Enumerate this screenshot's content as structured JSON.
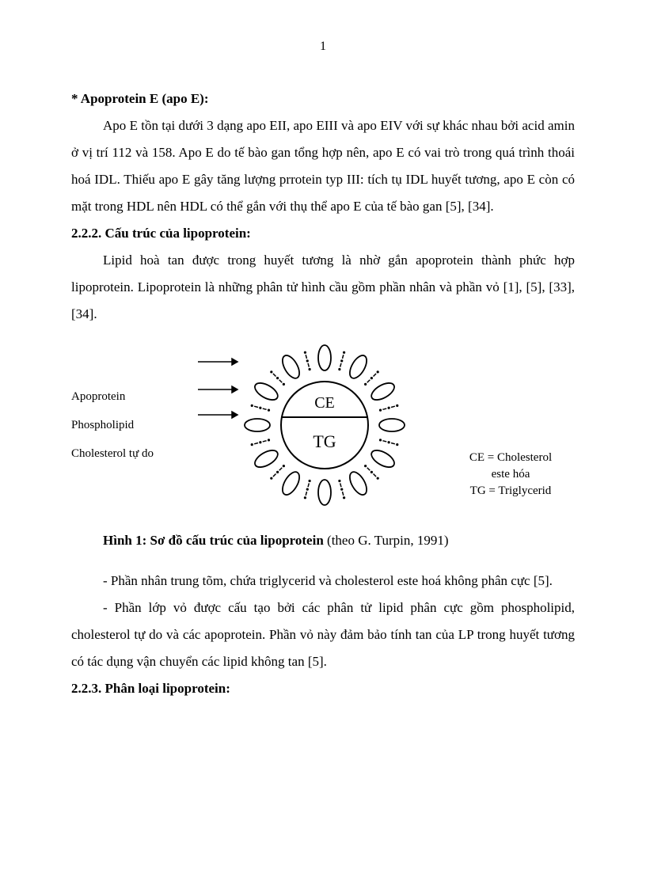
{
  "page_number": "1",
  "heading1": "* Apoprotein E (apo E):",
  "para1": "Apo E tồn tại dưới 3 dạng apo EII, apo EIII và apo EIV với sự khác nhau bởi acid amin ở vị trí 112 và 158. Apo E do tế bào gan tổng hợp nên, apo E có vai trò trong quá trình thoái hoá IDL. Thiếu apo E gây tăng lượng prrotein typ III: tích tụ IDL huyết tương, apo E còn có mặt trong HDL nên HDL có thể gắn với thụ thể apo E của tế bào gan [5], [34].",
  "heading2": "2.2.2. Cấu trúc của lipoprotein:",
  "para2": "Lipid hoà tan được trong huyết tương là nhờ gắn apoprotein thành phức hợp lipoprotein. Lipoprotein là những phân tử hình cầu gồm phần nhân và phần vỏ [1], [5], [33], [34].",
  "figure": {
    "left_labels": {
      "apoprotein": "Apoprotein",
      "phospholipid": "Phospholipid",
      "cholesterol_free": "Cholesterol  tự do"
    },
    "core": {
      "ce": "CE",
      "tg": "TG"
    },
    "legend_right": {
      "line1": "CE = Cholesterol",
      "line2": "este hóa",
      "line3": "TG = Triglycerid"
    },
    "stroke_color": "#000000",
    "background": "#ffffff"
  },
  "caption_bold": "Hình 1: Sơ đồ cấu trúc của lipoprotein",
  "caption_rest": " (theo G. Turpin, 1991)",
  "para3": "- Phần nhân trung tõm, chứa triglycerid và cholesterol este hoá không phân cực [5].",
  "para4": "- Phần lớp vỏ được cấu tạo bởi các phân tử lipid phân cực gồm phospholipid, cholesterol tự do và các apoprotein. Phần vỏ này đảm bảo tính tan của LP trong huyết tương có tác dụng vận chuyển các lipid không tan [5].",
  "heading3": "2.2.3. Phân loại lipoprotein:"
}
